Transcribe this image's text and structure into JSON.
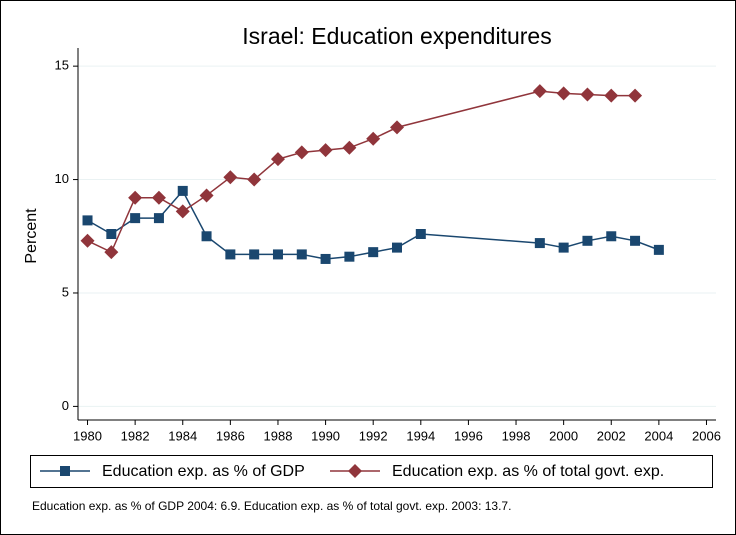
{
  "chart_data": {
    "type": "line",
    "title": "Israel: Education expenditures",
    "y_label": "Percent",
    "note": "Education exp. as % of GDP 2004: 6.9. Education exp. as % of total govt. exp. 2003: 13.7.",
    "xlim": [
      1979.6,
      2006.4
    ],
    "xticks": [
      1980,
      1982,
      1984,
      1986,
      1988,
      1990,
      1992,
      1994,
      1996,
      1998,
      2000,
      2002,
      2004,
      2006
    ],
    "ylim": [
      -0.6,
      15.8
    ],
    "yticks": [
      0,
      5,
      10,
      15
    ],
    "grid": true,
    "legend": "bottom",
    "series": [
      {
        "name": "Education exp. as % of GDP",
        "color": "#1a476f",
        "marker": "square",
        "x": [
          1980,
          1981,
          1982,
          1983,
          1984,
          1985,
          1986,
          1987,
          1988,
          1989,
          1990,
          1991,
          1992,
          1993,
          1994,
          1999,
          2000,
          2001,
          2002,
          2003,
          2004
        ],
        "values": [
          8.2,
          7.6,
          8.3,
          8.3,
          9.5,
          7.5,
          6.7,
          6.7,
          6.7,
          6.7,
          6.5,
          6.6,
          6.8,
          7.0,
          7.6,
          7.2,
          7.0,
          7.3,
          7.5,
          7.3,
          6.9
        ]
      },
      {
        "name": "Education exp. as % of total govt. exp.",
        "color": "#90353b",
        "marker": "diamond",
        "x": [
          1980,
          1981,
          1982,
          1983,
          1984,
          1985,
          1986,
          1987,
          1988,
          1989,
          1990,
          1991,
          1992,
          1993,
          1999,
          2000,
          2001,
          2002,
          2003
        ],
        "values": [
          7.3,
          6.8,
          9.2,
          9.2,
          8.6,
          9.3,
          10.1,
          10.0,
          10.9,
          11.2,
          11.3,
          11.4,
          11.8,
          12.3,
          13.9,
          13.8,
          13.75,
          13.7,
          13.7
        ]
      }
    ]
  }
}
